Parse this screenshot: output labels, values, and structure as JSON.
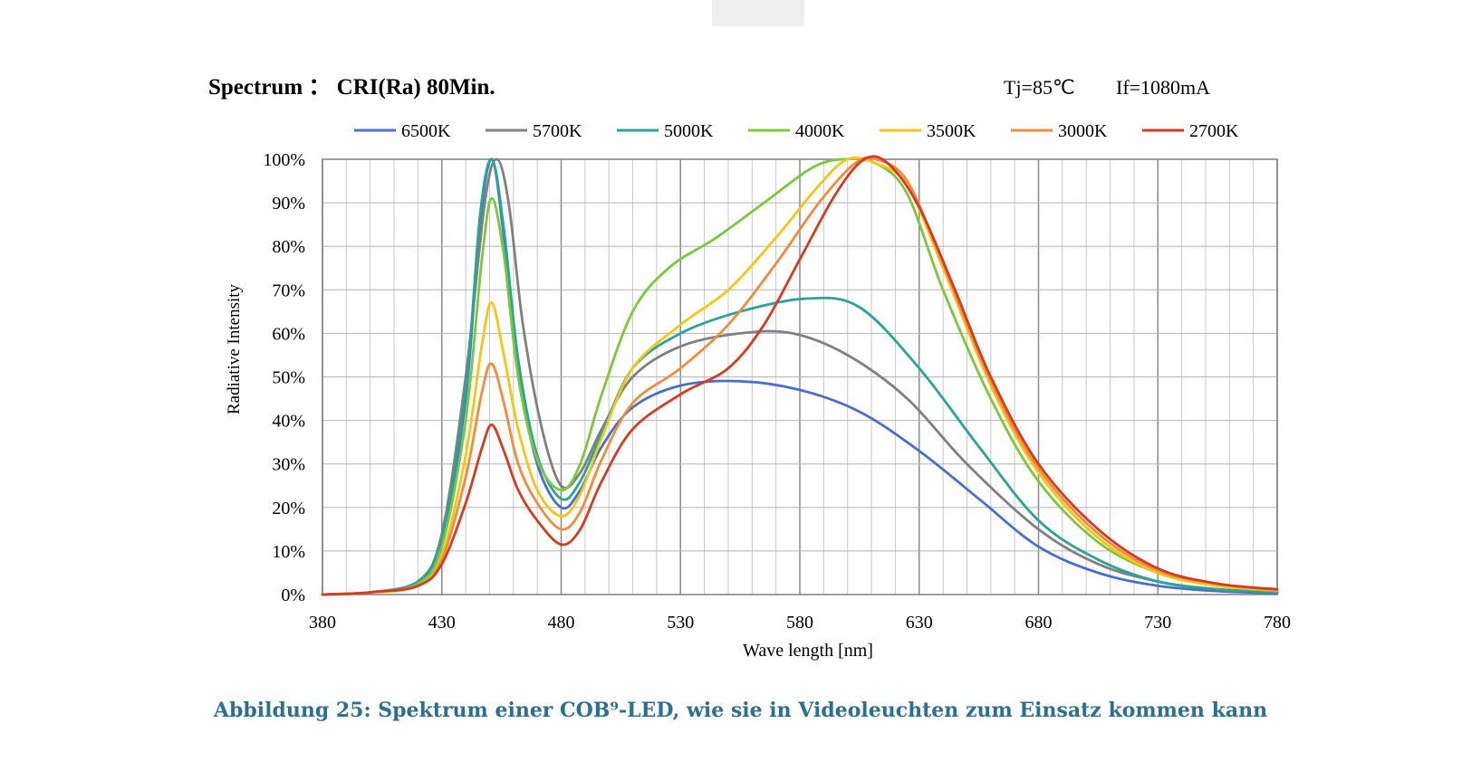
{
  "caption": {
    "text": "Abbildung 25: Spektrum einer COB⁹-LED, wie sie in Videoleuchten zum Einsatz kommen kann",
    "color": "#2e6e8e"
  },
  "chart_data": {
    "type": "line",
    "title": "Spectrum ： CRI(Ra) 80Min.",
    "annotation_tj": "Tj=85℃",
    "annotation_if": "If=1080mA",
    "xlabel": "Wave length [nm]",
    "ylabel": "Radiative Intensity",
    "xlim": [
      380,
      780
    ],
    "ylim": [
      0,
      100
    ],
    "x_ticks": [
      380,
      430,
      480,
      530,
      580,
      630,
      680,
      730,
      780
    ],
    "x_tick_labels": [
      "380",
      "430",
      "480",
      "530",
      "580",
      "630",
      "680",
      "730",
      "780"
    ],
    "y_ticks": [
      0,
      10,
      20,
      30,
      40,
      50,
      60,
      70,
      80,
      90,
      100
    ],
    "y_tick_labels": [
      "0%",
      "10%",
      "20%",
      "30%",
      "40%",
      "50%",
      "60%",
      "70%",
      "80%",
      "90%",
      "100%"
    ],
    "grid": true,
    "legend_position": "top",
    "series": [
      {
        "name": "6500K",
        "color": "#4a6fc8",
        "points": [
          [
            380,
            0
          ],
          [
            400,
            0.5
          ],
          [
            420,
            3
          ],
          [
            430,
            12
          ],
          [
            440,
            45
          ],
          [
            446,
            85
          ],
          [
            451,
            100
          ],
          [
            456,
            82
          ],
          [
            462,
            52
          ],
          [
            470,
            30
          ],
          [
            480,
            20
          ],
          [
            488,
            24
          ],
          [
            497,
            34
          ],
          [
            510,
            43
          ],
          [
            530,
            48
          ],
          [
            555,
            49
          ],
          [
            580,
            47
          ],
          [
            605,
            42
          ],
          [
            630,
            33
          ],
          [
            655,
            22
          ],
          [
            680,
            11
          ],
          [
            705,
            5
          ],
          [
            730,
            2
          ],
          [
            755,
            0.8
          ],
          [
            780,
            0.3
          ]
        ]
      },
      {
        "name": "5700K",
        "color": "#808080",
        "points": [
          [
            380,
            0
          ],
          [
            400,
            0.5
          ],
          [
            420,
            3
          ],
          [
            430,
            14
          ],
          [
            440,
            50
          ],
          [
            448,
            90
          ],
          [
            453,
            100
          ],
          [
            458,
            90
          ],
          [
            464,
            62
          ],
          [
            472,
            38
          ],
          [
            480,
            25
          ],
          [
            488,
            28
          ],
          [
            497,
            38
          ],
          [
            510,
            50
          ],
          [
            530,
            57
          ],
          [
            555,
            60
          ],
          [
            577,
            60
          ],
          [
            600,
            55
          ],
          [
            625,
            45
          ],
          [
            650,
            30
          ],
          [
            680,
            15
          ],
          [
            705,
            7
          ],
          [
            730,
            3
          ],
          [
            755,
            1.2
          ],
          [
            780,
            0.5
          ]
        ]
      },
      {
        "name": "5000K",
        "color": "#2aa39a",
        "points": [
          [
            380,
            0
          ],
          [
            400,
            0.5
          ],
          [
            420,
            3
          ],
          [
            430,
            13
          ],
          [
            440,
            47
          ],
          [
            446,
            87
          ],
          [
            451,
            100
          ],
          [
            456,
            84
          ],
          [
            462,
            54
          ],
          [
            470,
            32
          ],
          [
            480,
            22
          ],
          [
            488,
            26
          ],
          [
            497,
            37
          ],
          [
            510,
            52
          ],
          [
            530,
            60
          ],
          [
            555,
            65
          ],
          [
            583,
            68
          ],
          [
            605,
            66
          ],
          [
            630,
            52
          ],
          [
            655,
            34
          ],
          [
            680,
            17
          ],
          [
            705,
            8
          ],
          [
            730,
            3
          ],
          [
            755,
            1.2
          ],
          [
            780,
            0.5
          ]
        ]
      },
      {
        "name": "4000K",
        "color": "#7cc83b",
        "points": [
          [
            380,
            0
          ],
          [
            400,
            0.5
          ],
          [
            420,
            2.5
          ],
          [
            430,
            11
          ],
          [
            440,
            40
          ],
          [
            447,
            78
          ],
          [
            451,
            91
          ],
          [
            456,
            78
          ],
          [
            462,
            50
          ],
          [
            470,
            31
          ],
          [
            480,
            24
          ],
          [
            488,
            30
          ],
          [
            497,
            46
          ],
          [
            510,
            65
          ],
          [
            525,
            75
          ],
          [
            545,
            82
          ],
          [
            565,
            90
          ],
          [
            585,
            98
          ],
          [
            598,
            100
          ],
          [
            612,
            99
          ],
          [
            625,
            92
          ],
          [
            640,
            70
          ],
          [
            660,
            45
          ],
          [
            680,
            26
          ],
          [
            705,
            12
          ],
          [
            730,
            5
          ],
          [
            755,
            2
          ],
          [
            780,
            0.8
          ]
        ]
      },
      {
        "name": "3500K",
        "color": "#f5c518",
        "points": [
          [
            380,
            0
          ],
          [
            400,
            0.5
          ],
          [
            420,
            2
          ],
          [
            430,
            9
          ],
          [
            440,
            32
          ],
          [
            447,
            58
          ],
          [
            451,
            67
          ],
          [
            456,
            55
          ],
          [
            462,
            38
          ],
          [
            470,
            24
          ],
          [
            480,
            18
          ],
          [
            488,
            23
          ],
          [
            497,
            36
          ],
          [
            510,
            52
          ],
          [
            530,
            62
          ],
          [
            550,
            70
          ],
          [
            570,
            82
          ],
          [
            588,
            94
          ],
          [
            600,
            100
          ],
          [
            612,
            99
          ],
          [
            625,
            94
          ],
          [
            640,
            75
          ],
          [
            660,
            48
          ],
          [
            680,
            28
          ],
          [
            705,
            13
          ],
          [
            730,
            5
          ],
          [
            755,
            2
          ],
          [
            780,
            1
          ]
        ]
      },
      {
        "name": "3000K",
        "color": "#f08c3c",
        "points": [
          [
            380,
            0
          ],
          [
            400,
            0.5
          ],
          [
            420,
            2
          ],
          [
            430,
            8
          ],
          [
            440,
            27
          ],
          [
            447,
            47
          ],
          [
            451,
            53
          ],
          [
            456,
            44
          ],
          [
            462,
            30
          ],
          [
            470,
            21
          ],
          [
            480,
            15
          ],
          [
            488,
            19
          ],
          [
            497,
            31
          ],
          [
            510,
            44
          ],
          [
            530,
            52
          ],
          [
            550,
            62
          ],
          [
            570,
            76
          ],
          [
            588,
            90
          ],
          [
            603,
            99
          ],
          [
            612,
            100
          ],
          [
            625,
            95
          ],
          [
            640,
            76
          ],
          [
            660,
            49
          ],
          [
            680,
            29
          ],
          [
            705,
            14
          ],
          [
            730,
            5.5
          ],
          [
            755,
            2.5
          ],
          [
            780,
            1
          ]
        ]
      },
      {
        "name": "2700K",
        "color": "#d43b22",
        "points": [
          [
            380,
            0
          ],
          [
            400,
            0.5
          ],
          [
            420,
            2
          ],
          [
            430,
            7
          ],
          [
            440,
            21
          ],
          [
            447,
            34
          ],
          [
            451,
            39
          ],
          [
            456,
            33
          ],
          [
            462,
            24
          ],
          [
            470,
            17
          ],
          [
            480,
            11.5
          ],
          [
            488,
            15
          ],
          [
            497,
            26
          ],
          [
            510,
            38
          ],
          [
            530,
            46
          ],
          [
            550,
            52
          ],
          [
            565,
            62
          ],
          [
            580,
            77
          ],
          [
            595,
            92
          ],
          [
            607,
            100
          ],
          [
            617,
            99
          ],
          [
            630,
            89
          ],
          [
            645,
            70
          ],
          [
            660,
            50
          ],
          [
            680,
            30
          ],
          [
            705,
            15
          ],
          [
            730,
            6
          ],
          [
            755,
            2.5
          ],
          [
            780,
            1.2
          ]
        ]
      }
    ]
  }
}
